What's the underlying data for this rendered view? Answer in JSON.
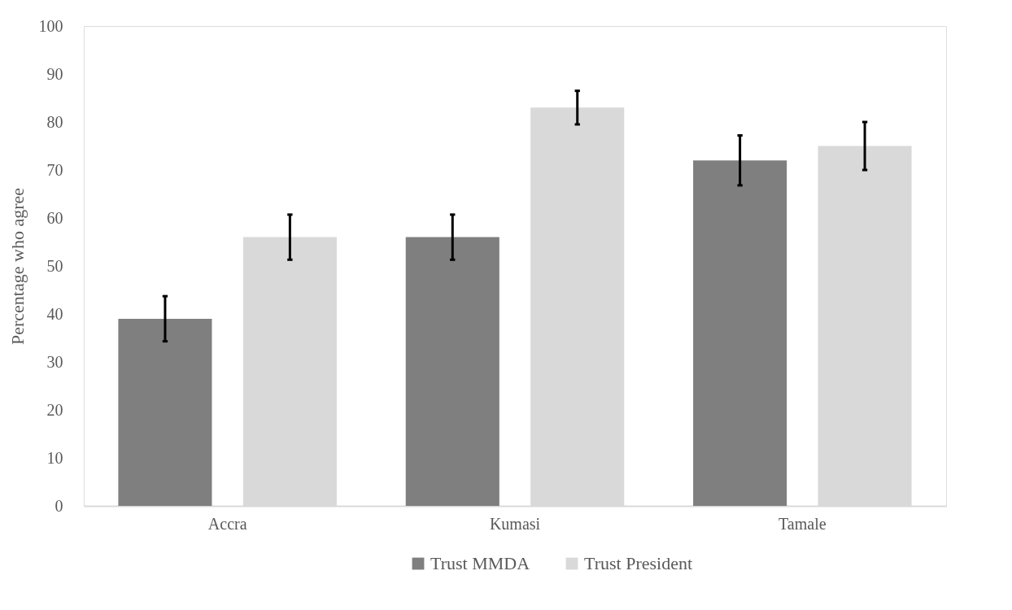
{
  "chart_data": {
    "type": "bar",
    "ylabel": "Percentage who agree",
    "categories": [
      "Accra",
      "Kumasi",
      "Tamale"
    ],
    "series": [
      {
        "name": "Trust MMDA",
        "color": "#7f7f7f",
        "values": [
          39,
          56,
          72
        ],
        "errors": [
          4.7,
          4.7,
          5.2
        ]
      },
      {
        "name": "Trust President",
        "color": "#d9d9d9",
        "values": [
          56,
          83,
          75
        ],
        "errors": [
          4.7,
          3.5,
          5
        ]
      }
    ],
    "ylim": [
      0,
      100
    ],
    "yticks": [
      0,
      10,
      20,
      30,
      40,
      50,
      60,
      70,
      80,
      90,
      100
    ],
    "grid": false,
    "legend": "bottom"
  }
}
